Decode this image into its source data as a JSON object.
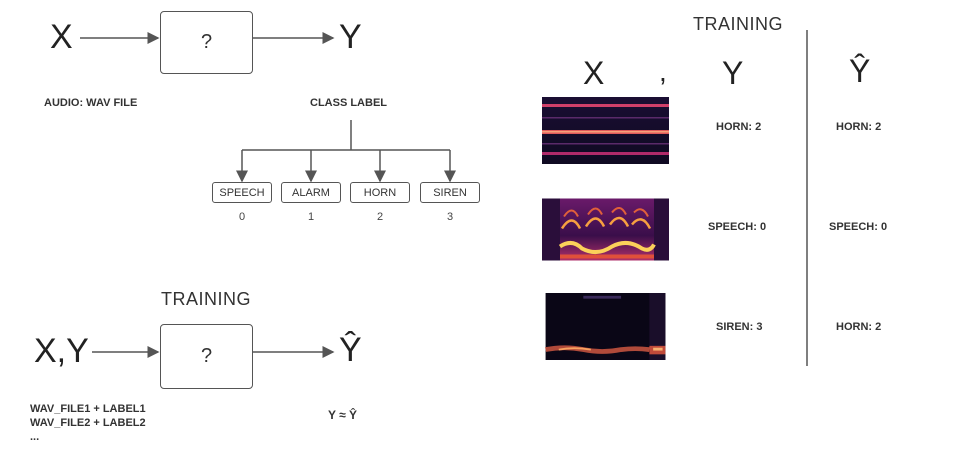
{
  "top_flow": {
    "input": "X",
    "box": "?",
    "output": "Y",
    "input_label": "AUDIO: WAV FILE",
    "output_label": "CLASS LABEL"
  },
  "classes": [
    {
      "name": "SPEECH",
      "index": "0"
    },
    {
      "name": "ALARM",
      "index": "1"
    },
    {
      "name": "HORN",
      "index": "2"
    },
    {
      "name": "SIREN",
      "index": "3"
    }
  ],
  "training_flow": {
    "title": "TRAINING",
    "input": "X,Y",
    "box": "?",
    "output": "Ŷ",
    "lines": [
      "WAV_FILE1 + LABEL1",
      "WAV_FILE2 + LABEL2",
      "..."
    ],
    "approx": "Y ≈ Ŷ"
  },
  "training_table": {
    "title": "TRAINING",
    "col_x": "X",
    "comma": ",",
    "col_y": "Y",
    "col_yhat": "Ŷ",
    "rows": [
      {
        "y": "HORN: 2",
        "yhat": "HORN: 2",
        "spectrogram": "horn-spectrogram"
      },
      {
        "y": "SPEECH: 0",
        "yhat": "SPEECH: 0",
        "spectrogram": "speech-spectrogram"
      },
      {
        "y": "SIREN: 3",
        "yhat": "HORN: 2",
        "spectrogram": "siren-spectrogram"
      }
    ]
  },
  "colors": {
    "line": "#555555",
    "spectrogram_bg": "#140a2a",
    "spectrogram_hot": "#fbd15a"
  }
}
